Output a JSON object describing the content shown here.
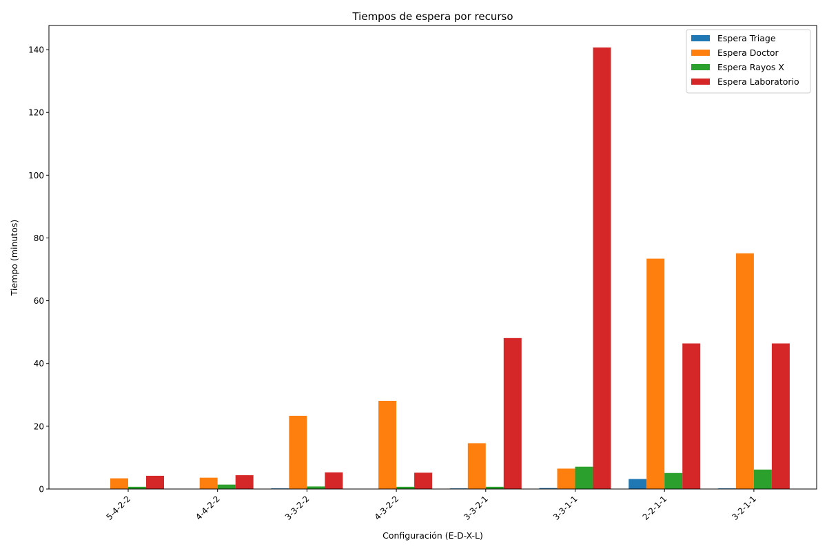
{
  "chart_data": {
    "type": "bar",
    "title": "Tiempos de espera por recurso",
    "xlabel": "Configuración (E-D-X-L)",
    "ylabel": "Tiempo (minutos)",
    "categories": [
      "5-4-2-2",
      "4-4-2-2",
      "3-3-2-2",
      "4-3-2-2",
      "3-3-2-1",
      "3-3-1-1",
      "2-2-1-1",
      "3-2-1-1"
    ],
    "series": [
      {
        "name": "Espera Triage",
        "color": "#1f77b4",
        "values": [
          0.0,
          0.0,
          0.2,
          0.0,
          0.2,
          0.3,
          3.2,
          0.2
        ]
      },
      {
        "name": "Espera Doctor",
        "color": "#ff7f0e",
        "values": [
          3.4,
          3.6,
          23.3,
          28.1,
          14.6,
          6.5,
          73.4,
          75.1
        ]
      },
      {
        "name": "Espera Rayos X",
        "color": "#2ca02c",
        "values": [
          0.7,
          1.4,
          0.8,
          0.7,
          0.7,
          7.1,
          5.1,
          6.2
        ]
      },
      {
        "name": "Espera Laboratorio",
        "color": "#d62728",
        "values": [
          4.2,
          4.4,
          5.3,
          5.2,
          48.1,
          140.7,
          46.4,
          46.4
        ]
      }
    ],
    "ylim": [
      0,
      147.7
    ],
    "yticks": [
      0,
      20,
      40,
      60,
      80,
      100,
      120,
      140
    ],
    "legend_position": "top-right",
    "grid": false
  }
}
